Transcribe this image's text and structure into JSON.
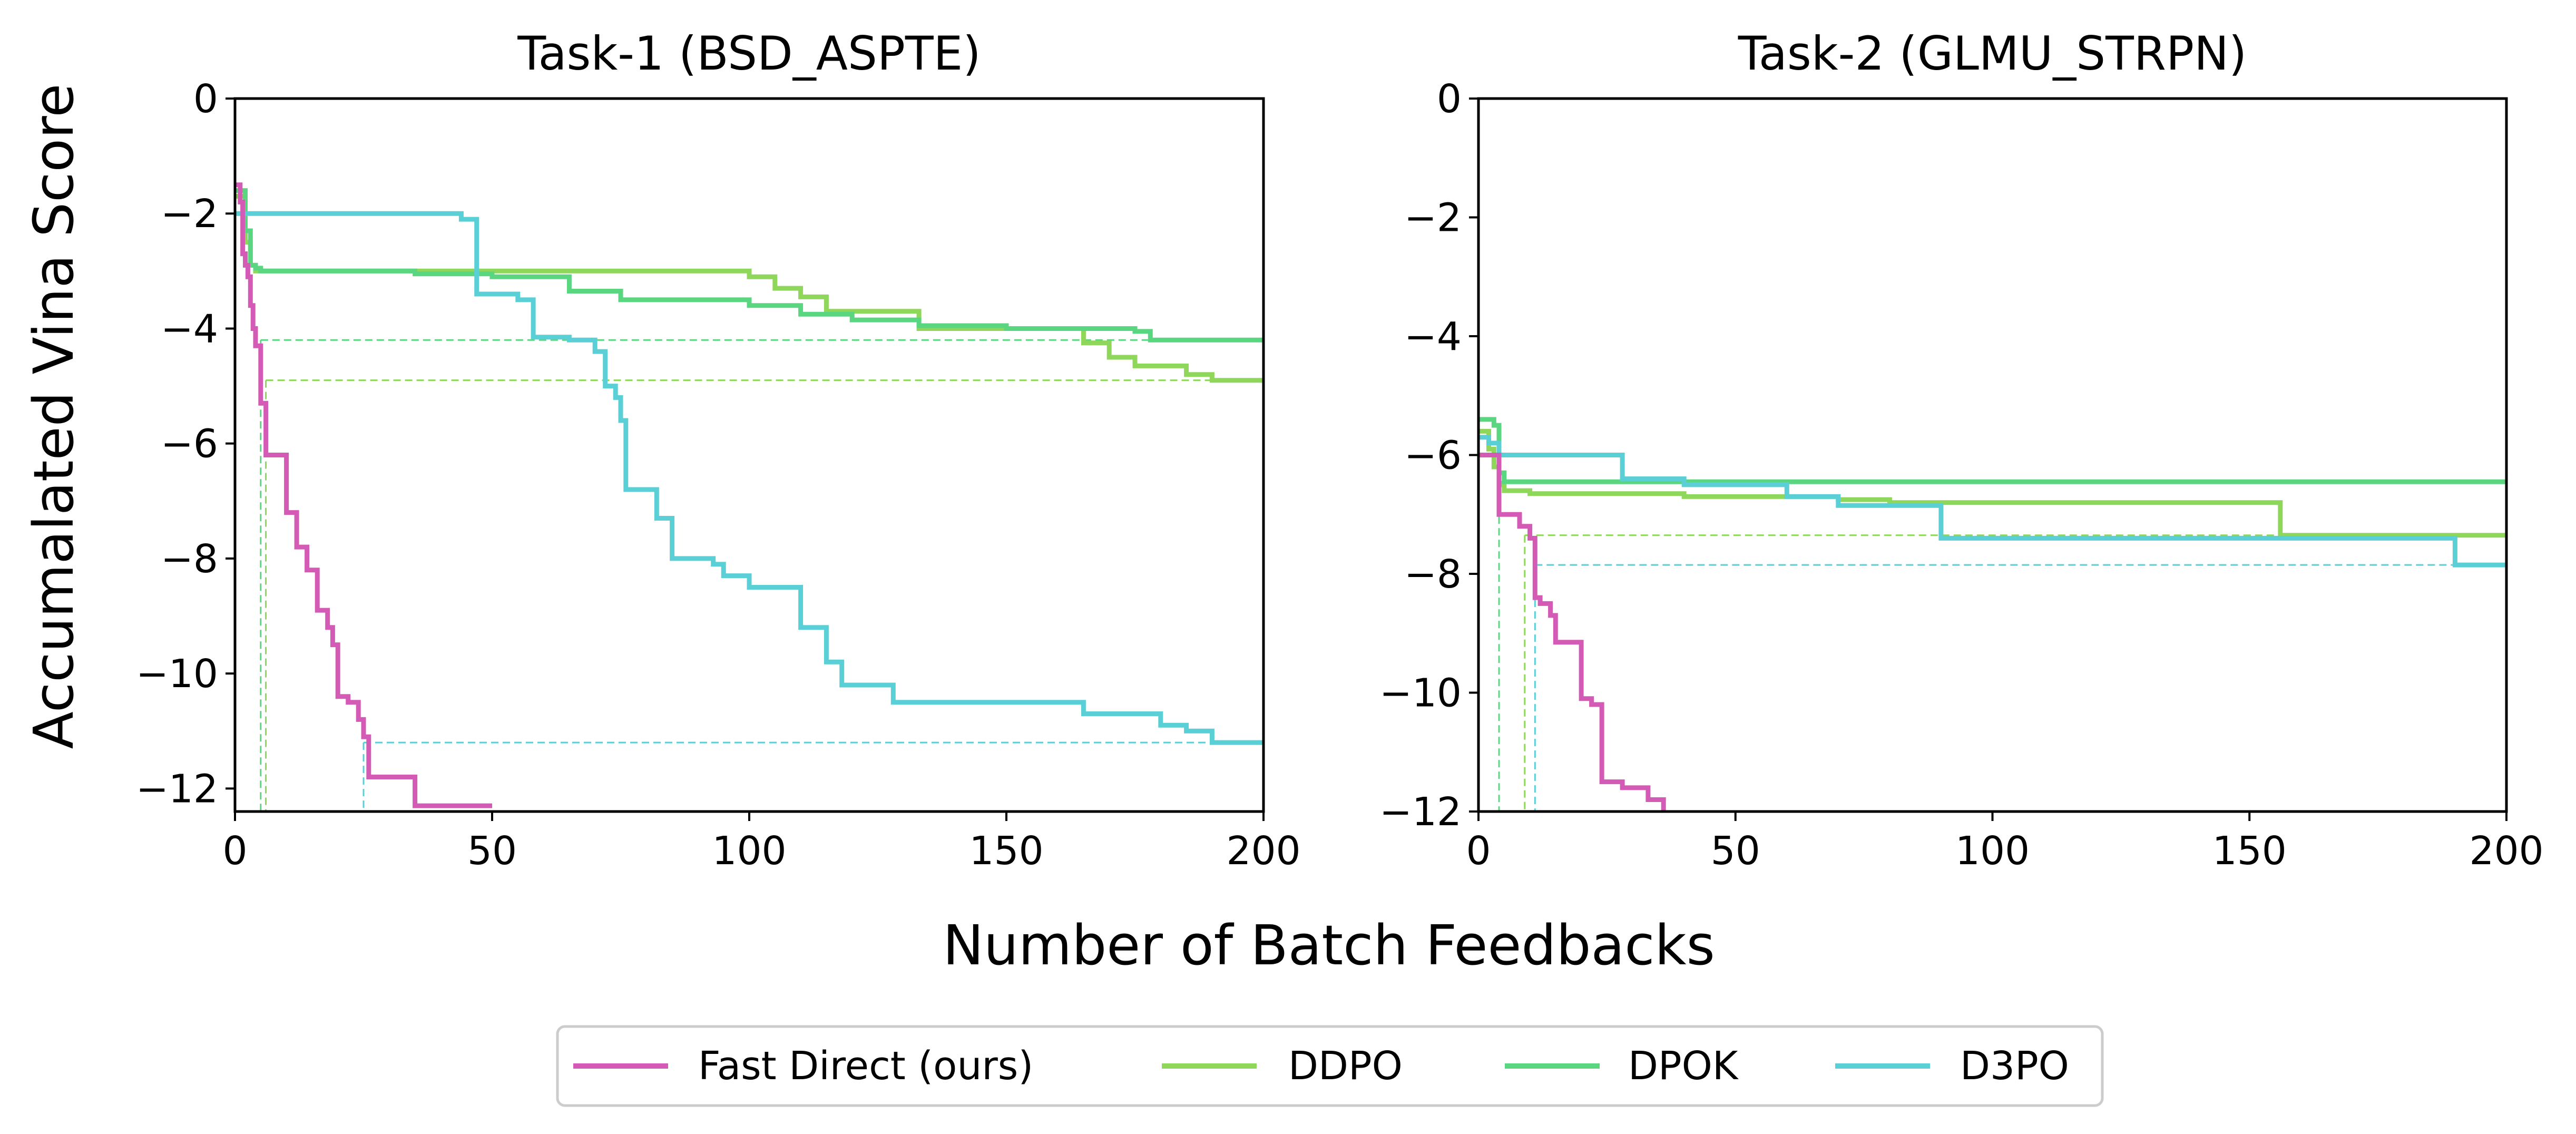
{
  "figure": {
    "ylabel": "Accumalated Vina Score",
    "xlabel": "Number of Batch Feedbacks"
  },
  "legend": {
    "placement": "bottom-center",
    "items": [
      {
        "label": "Fast Direct (ours)",
        "color": "#d45bb5"
      },
      {
        "label": "DDPO",
        "color": "#8ed75b"
      },
      {
        "label": "DPOK",
        "color": "#5bd680"
      },
      {
        "label": "D3PO",
        "color": "#5bcfd6"
      }
    ]
  },
  "chart_data": [
    {
      "type": "line",
      "title": "Task-1 (BSD_ASPTE)",
      "xlim": [
        0,
        200
      ],
      "ylim": [
        -12.4,
        0
      ],
      "xticks": [
        0,
        50,
        100,
        150,
        200
      ],
      "yticks": [
        0,
        -2,
        -4,
        -6,
        -8,
        -10,
        -12
      ],
      "grid": false,
      "series": [
        {
          "name": "Fast Direct (ours)",
          "color": "#d45bb5",
          "x": [
            0,
            1,
            1.5,
            2,
            2.5,
            3,
            3.5,
            4,
            5,
            6,
            7,
            10,
            12,
            14,
            15,
            16,
            18,
            19,
            20,
            22,
            24,
            25,
            26,
            27,
            35,
            50
          ],
          "y": [
            -1.5,
            -1.8,
            -2.7,
            -2.9,
            -3.1,
            -3.6,
            -4.0,
            -4.3,
            -5.3,
            -6.2,
            -6.2,
            -7.2,
            -7.8,
            -8.2,
            -8.2,
            -8.9,
            -9.2,
            -9.5,
            -10.4,
            -10.5,
            -10.8,
            -11.1,
            -11.8,
            -11.8,
            -12.3,
            -12.3
          ]
        },
        {
          "name": "DDPO",
          "color": "#8ed75b",
          "x": [
            0,
            2,
            3,
            4,
            5,
            6,
            60,
            100,
            105,
            110,
            115,
            133,
            165,
            170,
            175,
            185,
            190,
            200
          ],
          "y": [
            -1.7,
            -2.5,
            -2.9,
            -3.0,
            -3.0,
            -3.0,
            -3.0,
            -3.1,
            -3.3,
            -3.45,
            -3.7,
            -4.0,
            -4.25,
            -4.5,
            -4.65,
            -4.8,
            -4.9,
            -4.9
          ]
        },
        {
          "name": "DPOK",
          "color": "#5bd680",
          "x": [
            0,
            2,
            3,
            4,
            5,
            6,
            25,
            35,
            50,
            65,
            75,
            85,
            100,
            110,
            120,
            133,
            150,
            165,
            175,
            178,
            200
          ],
          "y": [
            -1.6,
            -2.3,
            -2.9,
            -2.95,
            -3.0,
            -3.0,
            -3.0,
            -3.05,
            -3.1,
            -3.35,
            -3.5,
            -3.5,
            -3.6,
            -3.75,
            -3.85,
            -3.95,
            -4.0,
            -4.0,
            -4.05,
            -4.2,
            -4.2
          ]
        },
        {
          "name": "D3PO",
          "color": "#5bcfd6",
          "x": [
            0,
            1,
            43,
            44,
            47,
            55,
            58,
            65,
            70,
            72,
            74,
            75,
            76,
            80,
            82,
            85,
            93,
            95,
            100,
            110,
            112,
            115,
            118,
            128,
            150,
            165,
            180,
            185,
            190,
            200
          ],
          "y": [
            -2.0,
            -2.0,
            -2.0,
            -2.1,
            -3.4,
            -3.5,
            -4.15,
            -4.2,
            -4.4,
            -5.0,
            -5.2,
            -5.6,
            -6.8,
            -6.8,
            -7.3,
            -8.0,
            -8.1,
            -8.3,
            -8.5,
            -9.2,
            -9.2,
            -9.8,
            -10.2,
            -10.5,
            -10.5,
            -10.7,
            -10.9,
            -11.0,
            -11.2,
            -11.2
          ]
        }
      ],
      "reference_lines": [
        {
          "series": "DPOK",
          "value_y": -4.2,
          "value_x": 5
        },
        {
          "series": "DDPO",
          "value_y": -4.9,
          "value_x": 6
        },
        {
          "series": "D3PO",
          "value_y": -11.2,
          "value_x": 25
        }
      ]
    },
    {
      "type": "line",
      "title": "Task-2 (GLMU_STRPN)",
      "xlim": [
        0,
        200
      ],
      "ylim": [
        -12,
        0
      ],
      "xticks": [
        0,
        50,
        100,
        150,
        200
      ],
      "yticks": [
        0,
        -2,
        -4,
        -6,
        -8,
        -10,
        -12
      ],
      "grid": false,
      "series": [
        {
          "name": "Fast Direct (ours)",
          "color": "#d45bb5",
          "x": [
            0,
            3,
            4,
            8,
            10,
            11,
            12,
            14,
            15,
            17,
            18,
            20,
            22,
            24,
            26,
            28,
            30,
            33,
            36,
            50
          ],
          "y": [
            -6.0,
            -6.0,
            -7.0,
            -7.2,
            -7.4,
            -8.4,
            -8.5,
            -8.7,
            -9.15,
            -9.15,
            -9.15,
            -10.1,
            -10.2,
            -11.5,
            -11.5,
            -11.6,
            -11.6,
            -11.8,
            -12.05,
            -12.05
          ]
        },
        {
          "name": "DDPO",
          "color": "#8ed75b",
          "x": [
            0,
            2,
            3,
            4,
            5,
            10,
            40,
            50,
            60,
            70,
            80,
            155,
            156,
            200
          ],
          "y": [
            -5.6,
            -5.9,
            -6.2,
            -6.5,
            -6.6,
            -6.65,
            -6.7,
            -6.7,
            -6.7,
            -6.75,
            -6.8,
            -6.8,
            -7.35,
            -7.35
          ]
        },
        {
          "name": "DPOK",
          "color": "#5bd680",
          "x": [
            0,
            3,
            4,
            5,
            10,
            200
          ],
          "y": [
            -5.4,
            -5.5,
            -6.3,
            -6.45,
            -6.45,
            -6.45
          ]
        },
        {
          "name": "D3PO",
          "color": "#5bcfd6",
          "x": [
            0,
            2,
            4,
            5,
            27,
            28,
            40,
            60,
            70,
            89,
            90,
            180,
            189,
            190,
            200
          ],
          "y": [
            -5.7,
            -5.8,
            -6.0,
            -6.0,
            -6.0,
            -6.4,
            -6.5,
            -6.7,
            -6.85,
            -6.85,
            -7.4,
            -7.4,
            -7.4,
            -7.85,
            -7.85
          ]
        }
      ],
      "reference_lines": [
        {
          "series": "DPOK",
          "value_y": -6.45,
          "value_x": 4
        },
        {
          "series": "DDPO",
          "value_y": -7.35,
          "value_x": 9
        },
        {
          "series": "D3PO",
          "value_y": -7.85,
          "value_x": 11
        }
      ]
    }
  ]
}
